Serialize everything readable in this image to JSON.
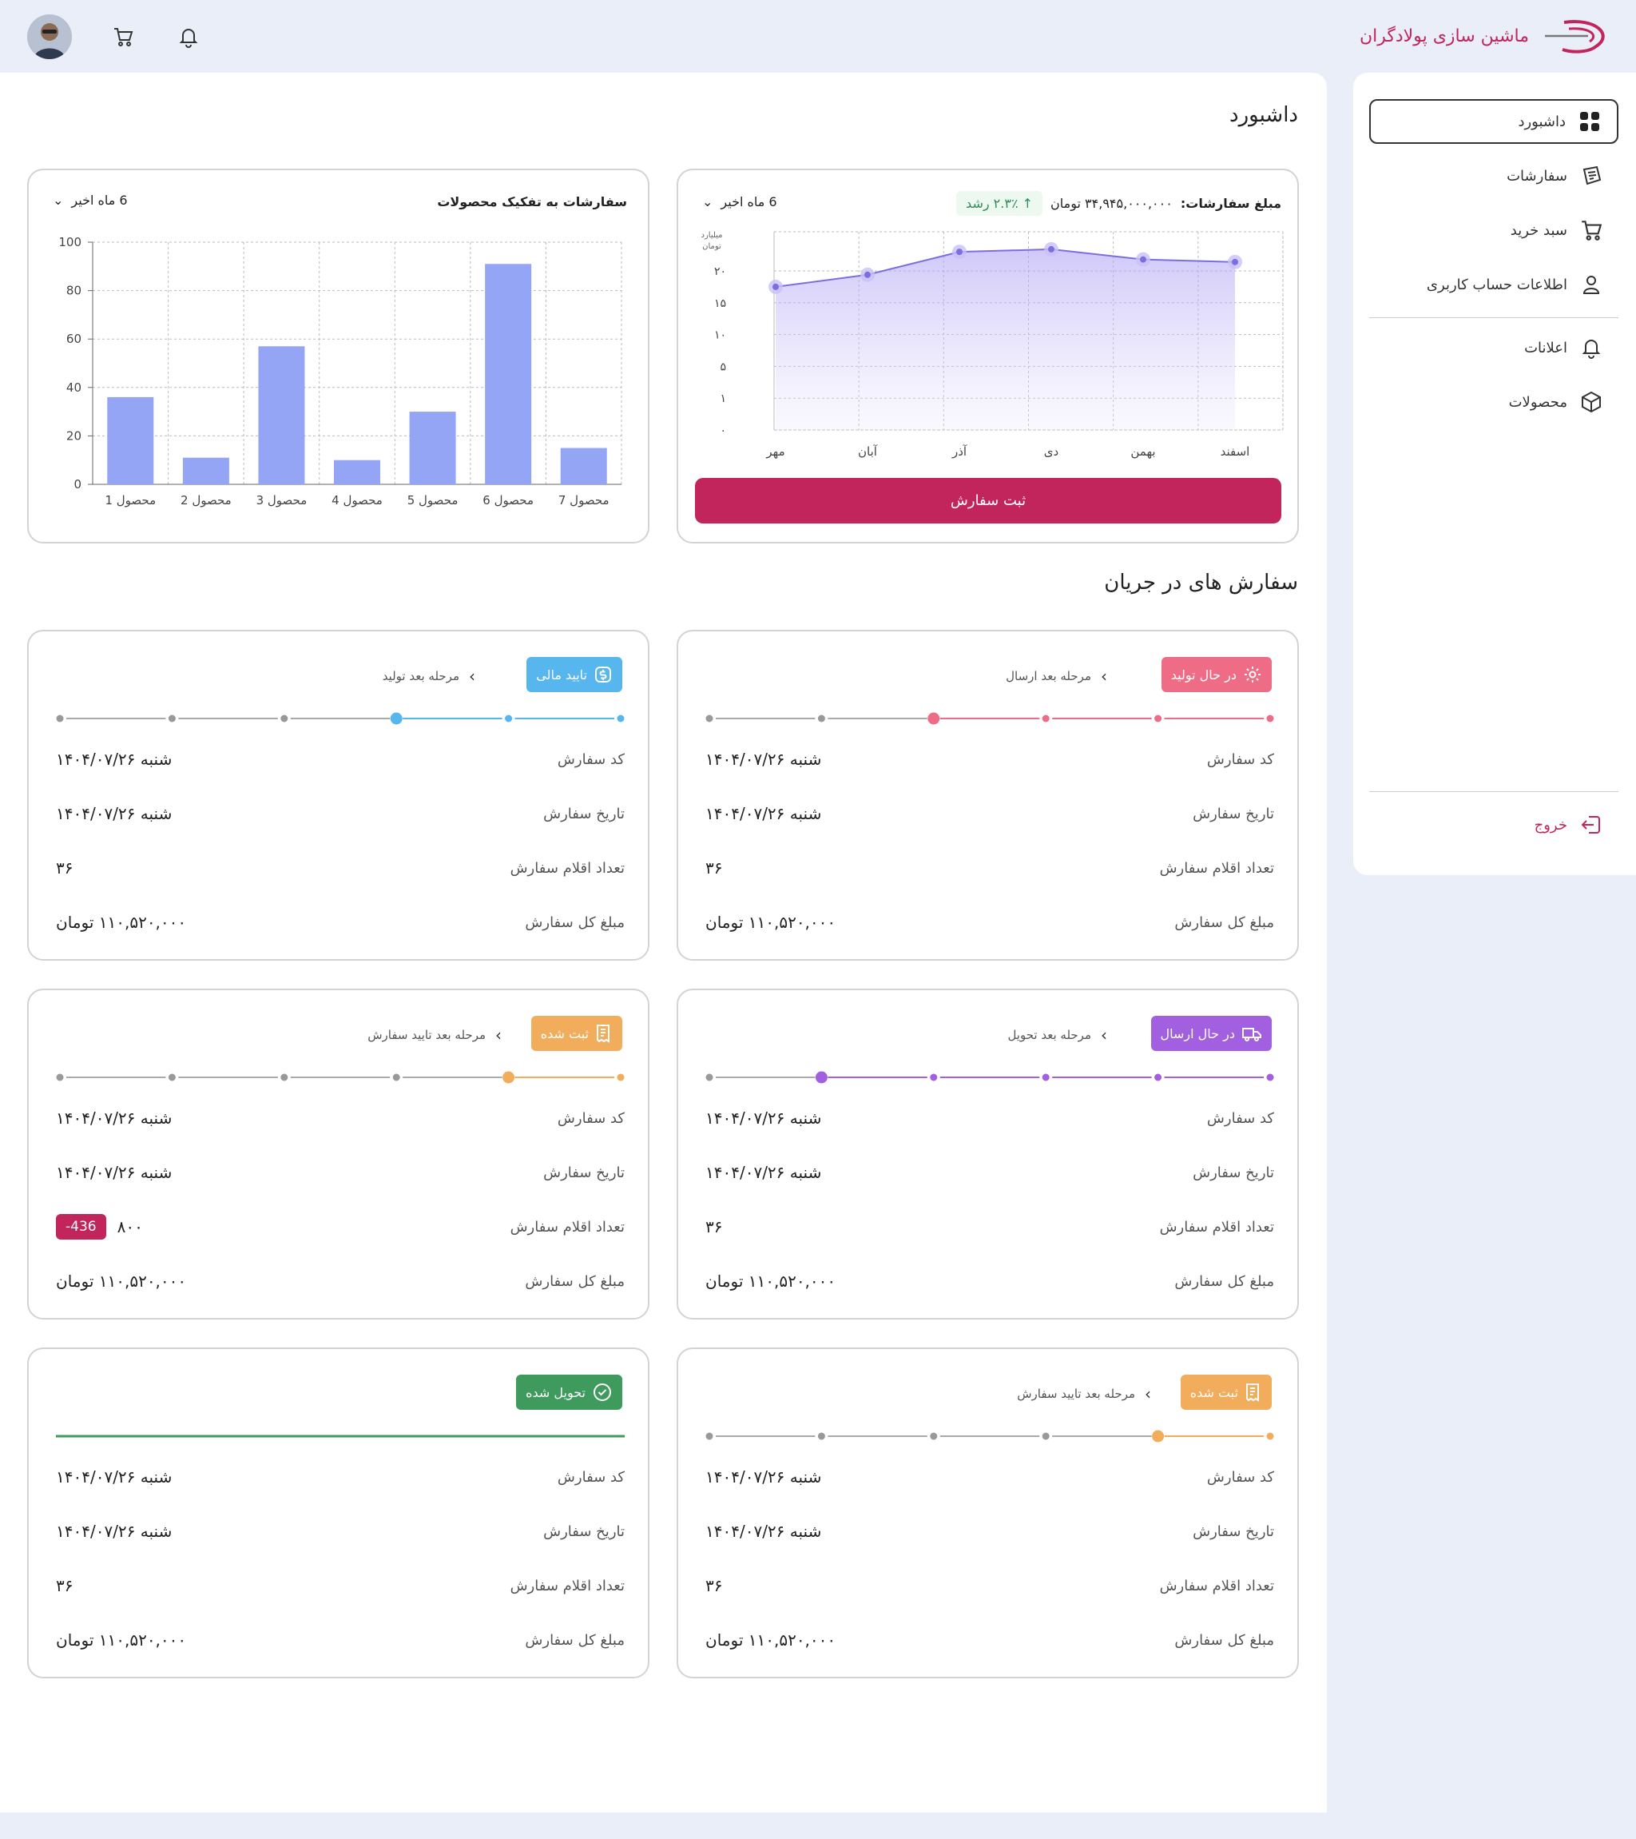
{
  "brand": {
    "name": "ماشین سازی پولادگران"
  },
  "sidebar": {
    "items": [
      {
        "label": "داشبورد",
        "icon": "dashboard-icon"
      },
      {
        "label": "سفارشات",
        "icon": "orders-icon"
      },
      {
        "label": "سبد خرید",
        "icon": "cart-icon"
      },
      {
        "label": "اطلاعات حساب کاربری",
        "icon": "user-icon"
      },
      {
        "label": "اعلانات",
        "icon": "bell-icon"
      },
      {
        "label": "محصولات",
        "icon": "box-icon"
      }
    ],
    "logout": "خروج"
  },
  "main": {
    "title": "داشبورد",
    "section_title": "سفارش های در جریان"
  },
  "sales_chart": {
    "label": "مبلغ سفارشات:",
    "amount": "۳۴,۹۴۵,۰۰۰,۰۰۰ تومان",
    "growth": "۲.۳٪ رشد",
    "range": "6 ماه اخیر",
    "unit_line1": "میلیارد",
    "unit_line2": "تومان",
    "submit": "ثبت سفارش"
  },
  "products_chart": {
    "title": "سفارشات به تفکیک محصولات",
    "range": "6 ماه اخیر"
  },
  "chart_data": [
    {
      "type": "area",
      "x": [
        "مهر",
        "آبان",
        "آذر",
        "دی",
        "بهمن",
        "اسفند"
      ],
      "values": [
        17.5,
        19.4,
        23,
        23.4,
        21.8,
        21.4
      ],
      "ytick_labels": [
        "۰",
        "۱",
        "۵",
        "۱۰",
        "۱۵",
        "۲۰"
      ],
      "ylabel": "میلیارد تومان",
      "grid": true,
      "color": "#7b6fe0"
    },
    {
      "type": "bar",
      "categories": [
        "محصول 1",
        "محصول 2",
        "محصول 3",
        "محصول 4",
        "محصول 5",
        "محصول 6",
        "محصول 7"
      ],
      "values": [
        36,
        11,
        57,
        10,
        30,
        91,
        15
      ],
      "ylim": [
        0,
        100
      ],
      "yticks": [
        0,
        20,
        40,
        60,
        80,
        100
      ],
      "grid": true,
      "color": "#95a5f6"
    }
  ],
  "orders": {
    "labels": {
      "code": "کد سفارش",
      "date": "تاریخ سفارش",
      "count": "تعداد اقلام سفارش",
      "total": "مبلغ کل  سفارش"
    },
    "items": [
      {
        "status": "در حال تولید",
        "next": "مرحله بعد ارسال",
        "color": "#ee6c86",
        "icon": "gear-icon",
        "step": 3,
        "code": "شنبه ۱۴۰۴/۰۷/۲۶",
        "date": "شنبه ۱۴۰۴/۰۷/۲۶",
        "count": "۳۶",
        "count_chip": "",
        "total": "۱۱۰,۵۲۰,۰۰۰ تومان"
      },
      {
        "status": "تایید مالی",
        "next": "مرحله بعد تولید",
        "color": "#57b6ee",
        "icon": "dollar-icon",
        "step": 2,
        "code": "شنبه ۱۴۰۴/۰۷/۲۶",
        "date": "شنبه ۱۴۰۴/۰۷/۲۶",
        "count": "۳۶",
        "count_chip": "",
        "total": "۱۱۰,۵۲۰,۰۰۰ تومان"
      },
      {
        "status": "در حال ارسال",
        "next": "مرحله بعد تحویل",
        "color": "#a25fe0",
        "icon": "truck-icon",
        "step": 4,
        "code": "شنبه ۱۴۰۴/۰۷/۲۶",
        "date": "شنبه ۱۴۰۴/۰۷/۲۶",
        "count": "۳۶",
        "count_chip": "",
        "total": "۱۱۰,۵۲۰,۰۰۰ تومان"
      },
      {
        "status": "ثبت شده",
        "next": "مرحله بعد تایید سفارش",
        "color": "#f2ad5c",
        "icon": "receipt-icon",
        "step": 1,
        "code": "شنبه ۱۴۰۴/۰۷/۲۶",
        "date": "شنبه ۱۴۰۴/۰۷/۲۶",
        "count": "۸۰۰",
        "count_chip": "-436",
        "total": "۱۱۰,۵۲۰,۰۰۰ تومان"
      },
      {
        "status": "ثبت شده",
        "next": "مرحله بعد تایید سفارش",
        "color": "#f2ad5c",
        "icon": "receipt-icon",
        "step": 1,
        "code": "شنبه ۱۴۰۴/۰۷/۲۶",
        "date": "شنبه ۱۴۰۴/۰۷/۲۶",
        "count": "۳۶",
        "count_chip": "",
        "total": "۱۱۰,۵۲۰,۰۰۰ تومان"
      },
      {
        "status": "تحویل شده",
        "next": "",
        "color": "#3f9a5e",
        "icon": "check-circle-icon",
        "step": 6,
        "code": "شنبه ۱۴۰۴/۰۷/۲۶",
        "date": "شنبه ۱۴۰۴/۰۷/۲۶",
        "count": "۳۶",
        "count_chip": "",
        "total": "۱۱۰,۵۲۰,۰۰۰ تومان"
      }
    ]
  }
}
